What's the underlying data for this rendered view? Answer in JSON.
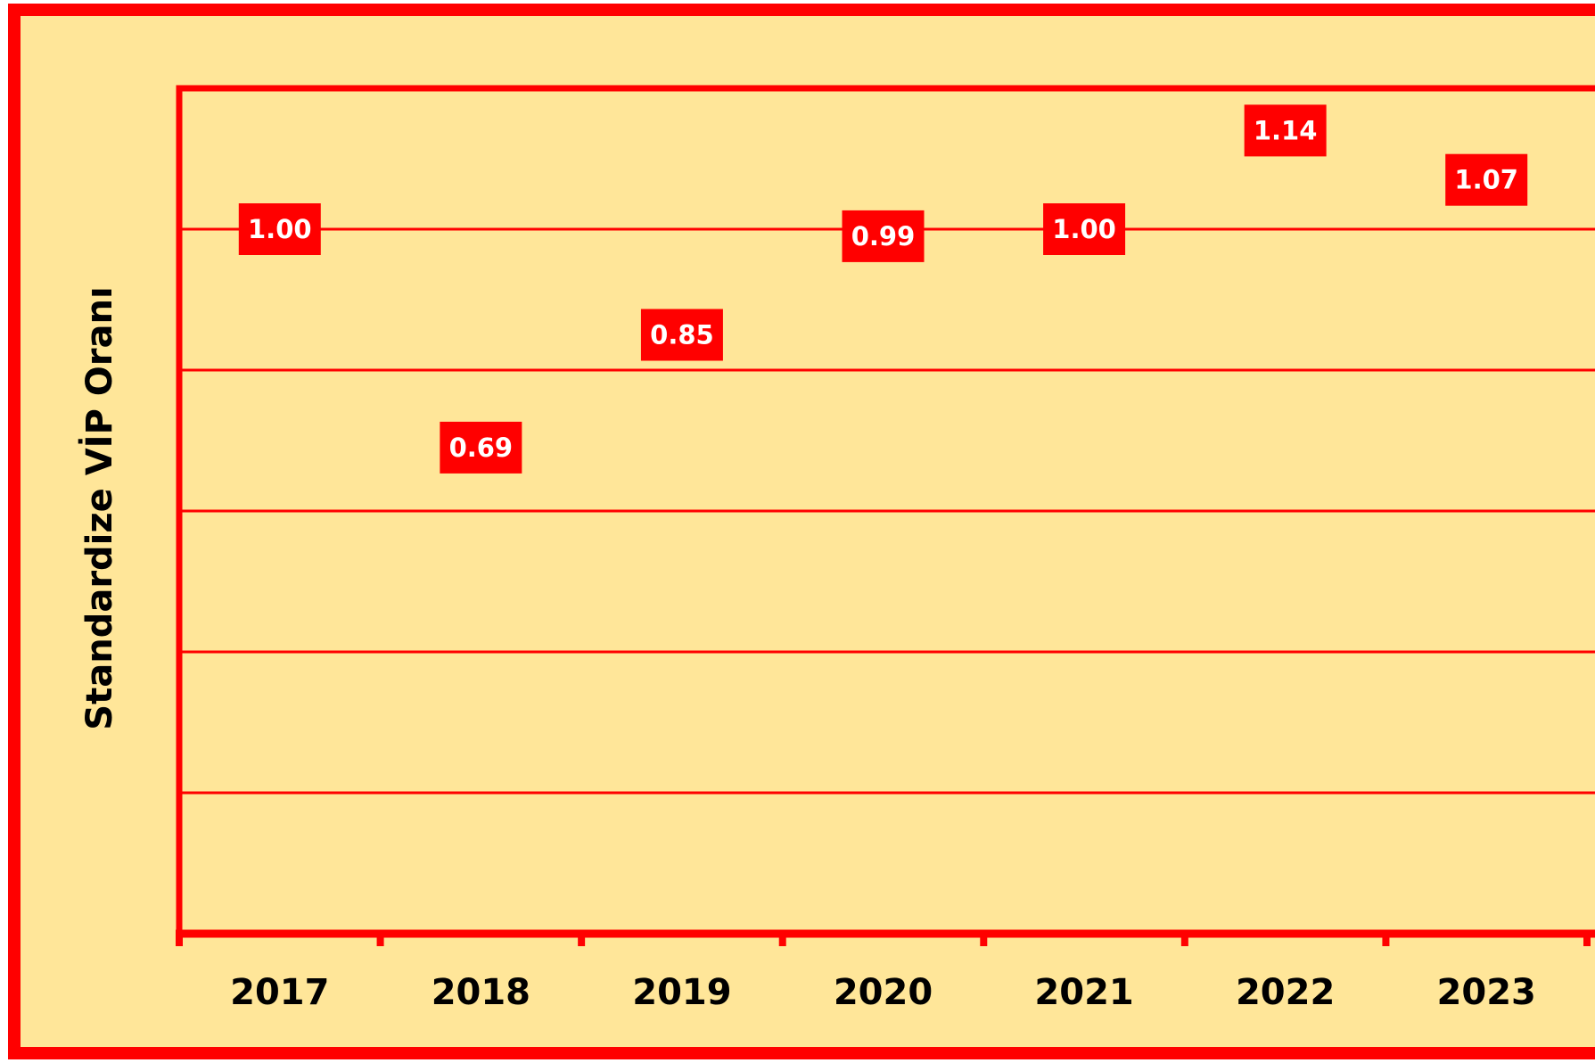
{
  "chart_data": {
    "type": "scatter",
    "y_label": "Standardize VİP Oranı",
    "categories": [
      "2017",
      "2018",
      "2019",
      "2020",
      "2021",
      "2022",
      "2023"
    ],
    "values": [
      1.0,
      0.69,
      0.85,
      0.99,
      1.0,
      1.14,
      1.07
    ],
    "value_labels": [
      "1.00",
      "0.69",
      "0.85",
      "0.99",
      "1.00",
      "1.14",
      "1.07"
    ],
    "color": "#ff0000",
    "ylim": [
      0,
      1.2
    ],
    "yticks": [
      0.2,
      0.4,
      0.6,
      0.8,
      1.0
    ],
    "grid": true
  }
}
